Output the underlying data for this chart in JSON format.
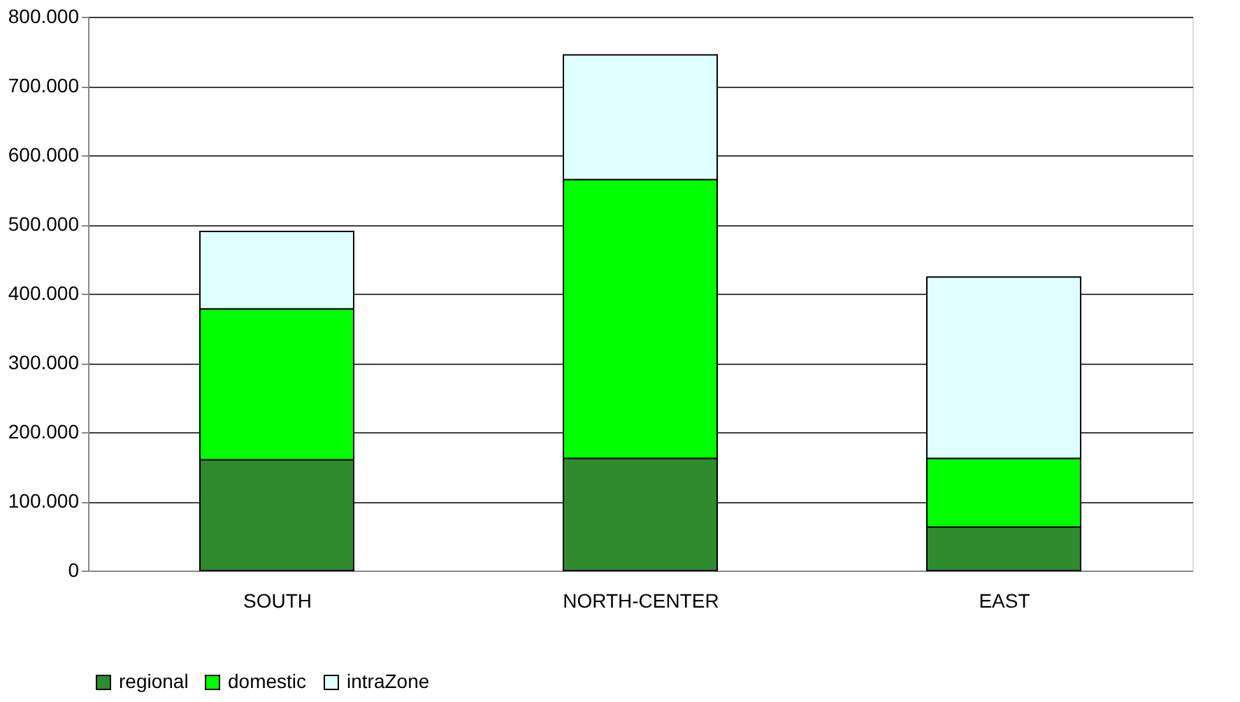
{
  "chart_data": {
    "type": "bar",
    "stacked": true,
    "categories": [
      "SOUTH",
      "NORTH-CENTER",
      "EAST"
    ],
    "series": [
      {
        "name": "regional",
        "color": "#2e8b2e",
        "values": [
          160000,
          162000,
          63000
        ]
      },
      {
        "name": "domestic",
        "color": "#00ff00",
        "values": [
          218000,
          403000,
          99000
        ]
      },
      {
        "name": "intraZone",
        "color": "#e0ffff",
        "values": [
          112000,
          180000,
          262000
        ]
      }
    ],
    "ylim": [
      0,
      800000
    ],
    "yticks": [
      {
        "value": 0,
        "label": "0"
      },
      {
        "value": 100000,
        "label": "100.000"
      },
      {
        "value": 200000,
        "label": "200.000"
      },
      {
        "value": 300000,
        "label": "300.000"
      },
      {
        "value": 400000,
        "label": "400.000"
      },
      {
        "value": 500000,
        "label": "500.000"
      },
      {
        "value": 600000,
        "label": "600.000"
      },
      {
        "value": 700000,
        "label": "700.000"
      },
      {
        "value": 800000,
        "label": "800.000"
      }
    ],
    "grid": "y",
    "legend": "bottom"
  }
}
